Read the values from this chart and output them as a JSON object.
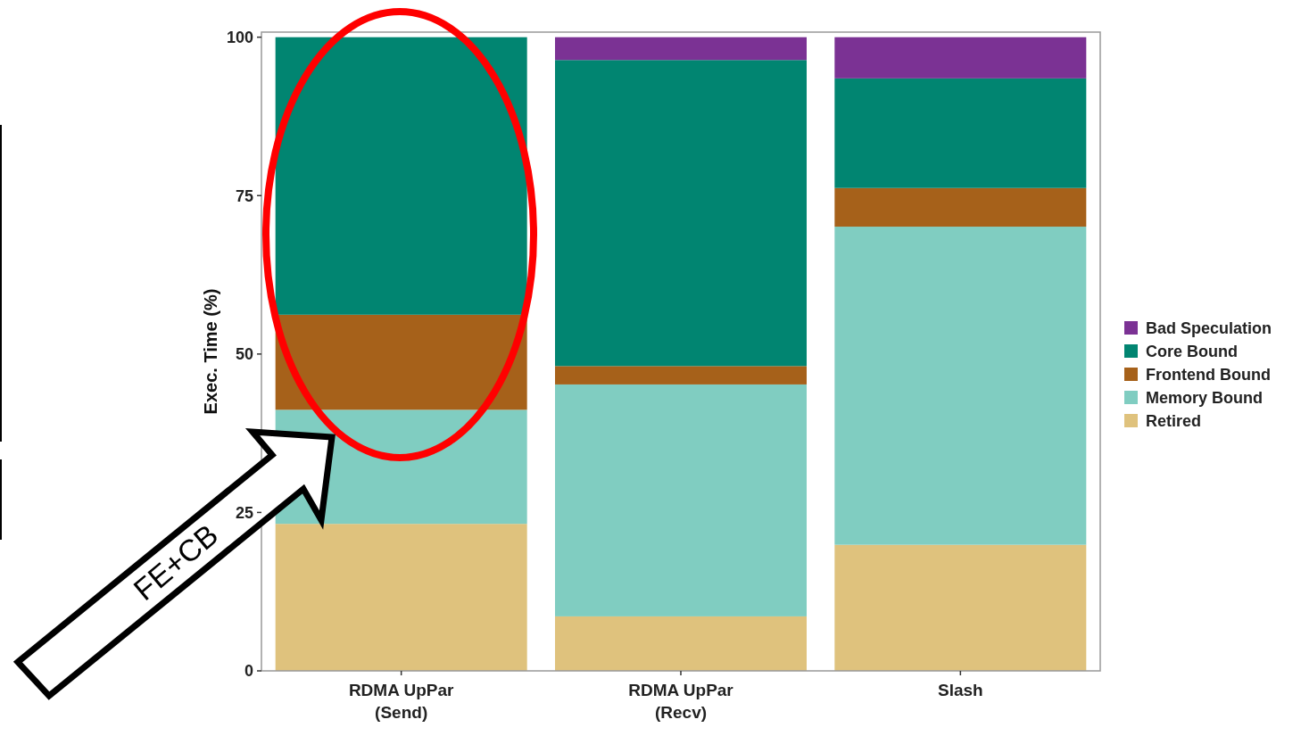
{
  "chart_data": {
    "type": "bar",
    "stacked": true,
    "ylabel": "Exec. Time (%)",
    "categories": [
      "RDMA UpPar\n(Send)",
      "RDMA UpPar\n(Recv)",
      "Slash"
    ],
    "series": [
      {
        "name": "Retired",
        "color": "#dfc27d",
        "values": [
          23.2,
          8.6,
          19.9
        ]
      },
      {
        "name": "Memory Bound",
        "color": "#80cdc1",
        "values": [
          18.0,
          36.6,
          50.2
        ]
      },
      {
        "name": "Frontend Bound",
        "color": "#a6611a",
        "values": [
          15.0,
          2.9,
          6.1
        ]
      },
      {
        "name": "Core Bound",
        "color": "#018571",
        "values": [
          43.8,
          48.3,
          17.3
        ]
      },
      {
        "name": "Bad Speculation",
        "color": "#7b3294",
        "values": [
          0,
          3.6,
          6.5
        ]
      }
    ],
    "ylim": [
      0,
      100.8
    ],
    "yticks": [
      0,
      25,
      50,
      75,
      100
    ],
    "grid": false,
    "legend": "right",
    "annotations": [
      "FE+CB"
    ]
  }
}
